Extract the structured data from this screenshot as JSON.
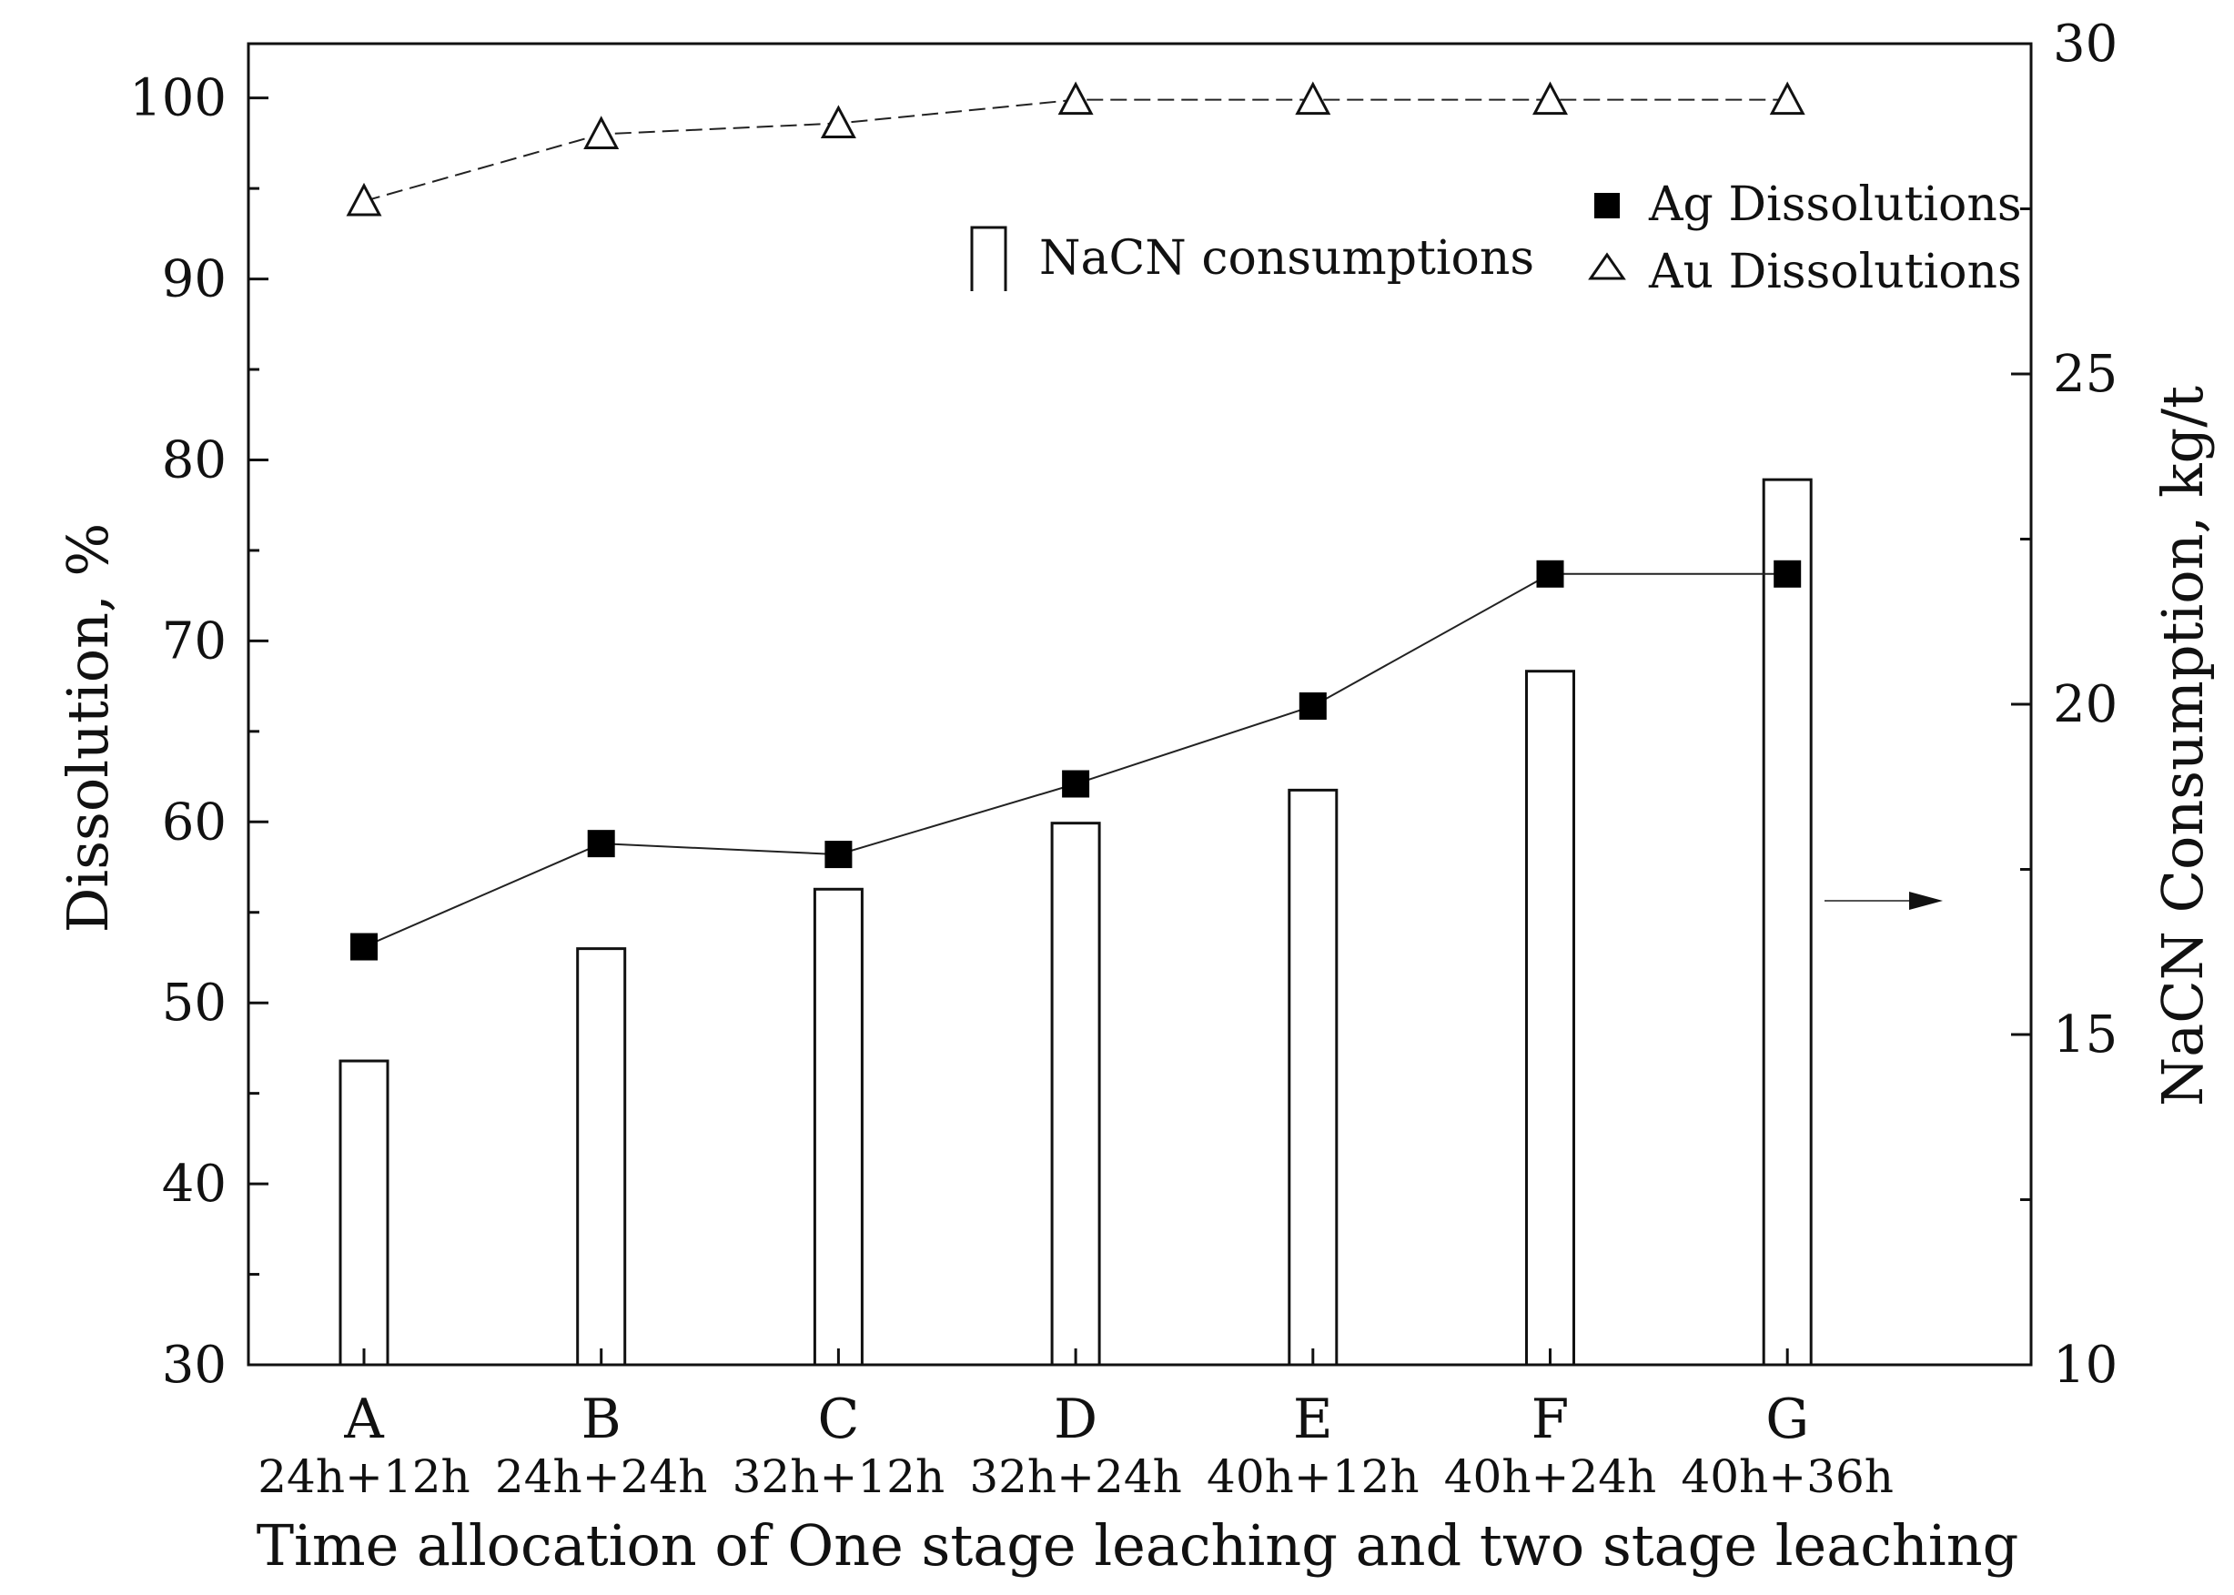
{
  "chart_data": {
    "type": "bar",
    "title": "",
    "xlabel": "Time allocation of One stage leaching and two stage leaching",
    "ylabel": "Dissolution, %",
    "y2label": "NaCN Consumption, kg/t",
    "ylim": [
      30,
      103
    ],
    "y2lim": [
      10,
      30
    ],
    "yticks": [
      30,
      40,
      50,
      60,
      70,
      80,
      90,
      100
    ],
    "y2ticks": [
      10,
      15,
      20,
      25,
      30
    ],
    "categories": [
      "A",
      "B",
      "C",
      "D",
      "E",
      "F",
      "G"
    ],
    "category_sublabels": [
      "24h+12h",
      "24h+24h",
      "32h+12h",
      "32h+24h",
      "40h+12h",
      "40h+24h",
      "40h+36h"
    ],
    "series": [
      {
        "name": "NaCN consumptions",
        "kind": "bar",
        "axis": "right",
        "values": [
          14.6,
          16.3,
          17.2,
          18.2,
          18.7,
          20.5,
          23.4
        ]
      },
      {
        "name": "Ag Dissolutions",
        "kind": "line-square",
        "axis": "left",
        "values": [
          53.1,
          58.8,
          58.2,
          62.1,
          66.4,
          73.7,
          73.7
        ]
      },
      {
        "name": "Au Dissolutions",
        "kind": "line-triangle",
        "axis": "left",
        "values": [
          94.3,
          98.0,
          98.6,
          99.9,
          99.9,
          99.9,
          99.9
        ]
      }
    ],
    "legend": {
      "bar_label": "NaCN consumptions",
      "ag_label": "Ag Dissolutions",
      "au_label": "Au Dissolutions",
      "placement": "top-right"
    },
    "grid": false
  }
}
